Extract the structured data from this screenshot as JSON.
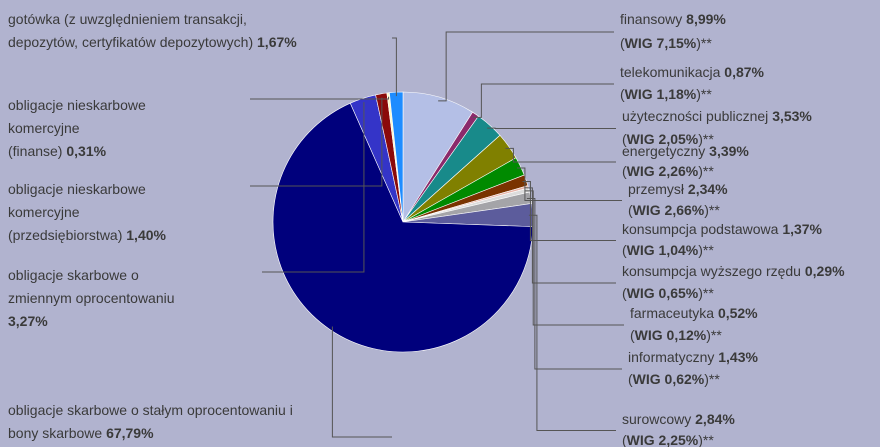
{
  "chart_data": {
    "type": "pie",
    "categories": [
      "finansowy",
      "telekomunikacja",
      "użyteczności publicznej",
      "energetyczny",
      "przemysł",
      "konsumpcja podstawowa",
      "konsumpcja wyższego rzędu",
      "farmaceutyka",
      "informatyczny",
      "surowcowy",
      "obligacje skarbowe o stałym oprocentowaniu i\nbony skarbowe",
      "obligacje skarbowe o\nzmiennym oprocentowaniu\n",
      "obligacje nieskarbowe\nkomercyjne\n(przedsiębiorstwa)",
      "obligacje nieskarbowe\nkomercyjne\n(finanse)",
      "gotówka (z uwzględnieniem transakcji,\ndepozytów, certyfikatów depozytowych)"
    ],
    "values": [
      8.99,
      0.87,
      3.53,
      3.39,
      2.34,
      1.37,
      0.29,
      0.52,
      1.43,
      2.84,
      67.79,
      3.27,
      1.4,
      0.31,
      1.67
    ],
    "value_labels": [
      "8,99%",
      "0,87%",
      "3,53%",
      "3,39%",
      "2,34%",
      "1,37%",
      "0,29%",
      "0,52%",
      "1,43%",
      "2,84%",
      "67,79%",
      "3,27%",
      "1,40%",
      "0,31%",
      "1,67%"
    ],
    "wig_labels": [
      "WIG 7,15%",
      "WIG 1,18%",
      "WIG 2,05%",
      "WIG 2,26%",
      "WIG 2,66%",
      "WIG 1,04%",
      "WIG 0,65%",
      "WIG 0,12%",
      "WIG 0,62%",
      "WIG 2,25%",
      null,
      null,
      null,
      null,
      null
    ],
    "wig_open": "(",
    "wig_close": ")**",
    "colors": [
      "#b4bfe6",
      "#8b2a6b",
      "#188a8a",
      "#808000",
      "#008a00",
      "#7a3300",
      "#e8b4a8",
      "#dcdcdc",
      "#a4a4a8",
      "#5c5c9c",
      "#00007c",
      "#3434c8",
      "#8b0a0a",
      "#fff8c8",
      "#1e8cff"
    ]
  }
}
